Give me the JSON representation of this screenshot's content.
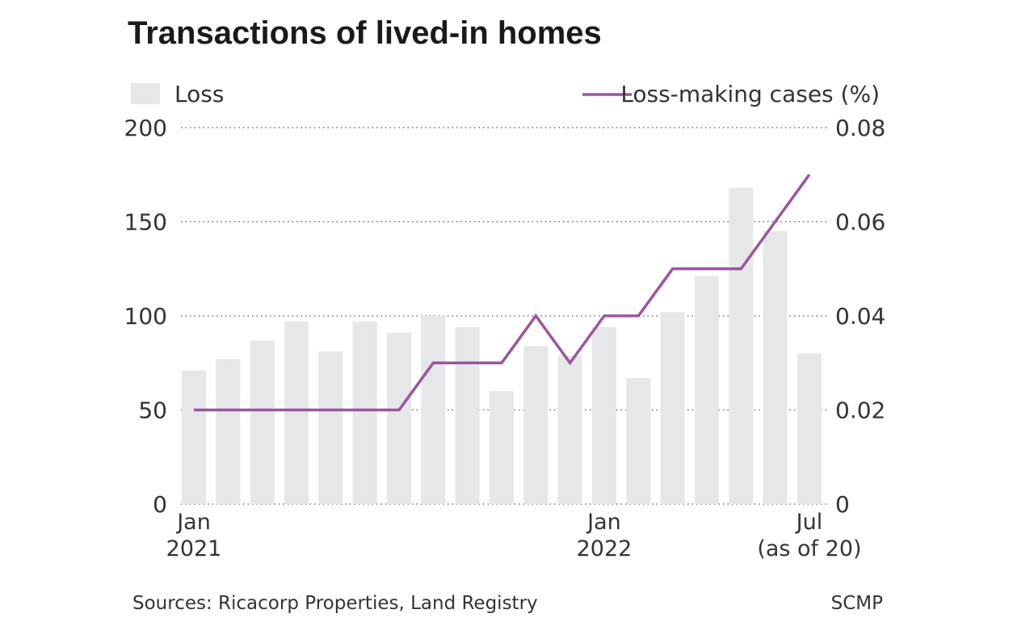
{
  "chart_data": {
    "type": "bar",
    "title": "Transactions of lived-in homes",
    "legend": {
      "bar_label": "Loss",
      "line_label": "Loss-making cases (%)"
    },
    "categories": [
      "Jan 2021",
      "Feb 2021",
      "Mar 2021",
      "Apr 2021",
      "May 2021",
      "Jun 2021",
      "Jul 2021",
      "Aug 2021",
      "Sep 2021",
      "Oct 2021",
      "Nov 2021",
      "Dec 2021",
      "Jan 2022",
      "Feb 2022",
      "Mar 2022",
      "Apr 2022",
      "May 2022",
      "Jun 2022",
      "Jul 2022"
    ],
    "series": [
      {
        "name": "Loss",
        "type": "bar",
        "axis": "left",
        "values": [
          71,
          77,
          87,
          97,
          81,
          97,
          91,
          100,
          94,
          60,
          84,
          79,
          94,
          67,
          102,
          121,
          168,
          145,
          80
        ]
      },
      {
        "name": "Loss-making cases (%)",
        "type": "line",
        "axis": "right",
        "values": [
          0.02,
          0.02,
          0.02,
          0.02,
          0.02,
          0.02,
          0.02,
          0.03,
          0.03,
          0.03,
          0.04,
          0.03,
          0.04,
          0.04,
          0.05,
          0.05,
          0.05,
          0.06,
          0.07
        ]
      }
    ],
    "y_left": {
      "ylim": [
        0,
        200
      ],
      "ticks": [
        "0",
        "50",
        "100",
        "150",
        "200"
      ]
    },
    "y_right": {
      "ylim": [
        0,
        0.08
      ],
      "ticks": [
        "0",
        "0.02",
        "0.04",
        "0.06",
        "0.08"
      ]
    },
    "x_tick_labels": [
      {
        "index": 0,
        "lines": [
          "Jan",
          "2021"
        ]
      },
      {
        "index": 12,
        "lines": [
          "Jan",
          "2022"
        ]
      },
      {
        "index": 18,
        "lines": [
          "Jul",
          "(as of 20)"
        ]
      }
    ],
    "grid": true,
    "legend_placement": "top",
    "colors": {
      "bar": "#e6e7e9",
      "line": "#9b569e"
    }
  },
  "footer": {
    "source": "Sources: Ricacorp Properties, Land Registry",
    "brand": "SCMP"
  }
}
